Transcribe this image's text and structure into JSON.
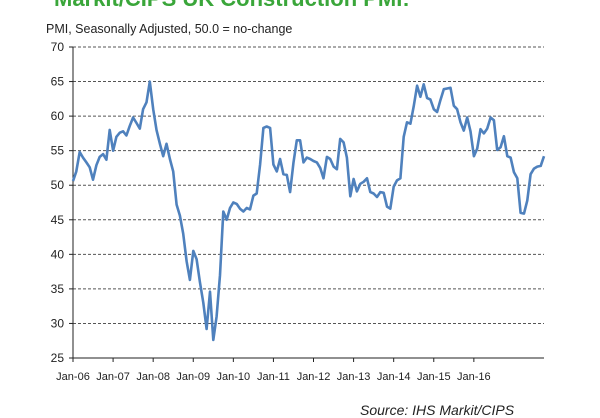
{
  "chart_data": {
    "type": "line",
    "title": "Markit/CIPS UK Construction PMI:",
    "subtitle": "PMI, Seasonally Adjusted, 50.0 = no-change",
    "source": "Source: IHS Markit/CIPS",
    "xlabel": "",
    "ylabel": "",
    "ylim": [
      25,
      70
    ],
    "yticks": [
      25,
      30,
      35,
      40,
      45,
      50,
      55,
      60,
      65,
      70
    ],
    "xticks": [
      "Jan-06",
      "Jan-07",
      "Jan-08",
      "Jan-09",
      "Jan-10",
      "Jan-11",
      "Jan-12",
      "Jan-13",
      "Jan-14",
      "Jan-15",
      "Jan-16"
    ],
    "grid": "horizontal-dashed",
    "line_color": "#4f81bd",
    "series": [
      {
        "values": [
          50.6,
          52.0,
          54.8,
          54.0,
          53.3,
          52.6,
          50.8,
          52.9,
          54.1,
          54.5,
          53.7,
          58.0,
          55.0,
          57.0,
          57.6,
          57.8,
          57.2,
          58.6,
          59.8,
          59.0,
          58.2,
          61.0,
          62.0,
          65.0,
          61.0,
          58.0,
          56.0,
          54.2,
          56.0,
          53.8,
          52.0,
          47.2,
          45.6,
          43.0,
          39.0,
          36.3,
          40.5,
          39.3,
          36.0,
          33.0,
          29.2,
          34.6,
          27.6,
          31.0,
          37.0,
          46.2,
          45.0,
          46.7,
          47.5,
          47.3,
          46.6,
          46.2,
          46.7,
          46.5,
          48.5,
          48.8,
          53.0,
          58.3,
          58.5,
          58.3,
          53.0,
          52.0,
          53.8,
          51.6,
          51.5,
          49.0,
          53.3,
          56.5,
          56.5,
          53.3,
          54.0,
          53.8,
          53.5,
          53.3,
          52.5,
          51.0,
          54.1,
          53.8,
          52.7,
          52.3,
          56.7,
          56.2,
          54.0,
          48.4,
          50.9,
          49.1,
          50.2,
          50.5,
          51.0,
          49.0,
          48.8,
          48.3,
          49.0,
          48.9,
          46.9,
          46.6,
          49.8,
          50.7,
          51.0,
          57.0,
          59.1,
          58.9,
          61.4,
          64.4,
          62.8,
          64.6,
          62.6,
          62.4,
          61.0,
          60.6,
          62.3,
          63.9,
          64.0,
          64.1,
          61.5,
          61.0,
          59.1,
          57.9,
          59.8,
          57.8,
          54.2,
          55.3,
          58.1,
          57.5,
          58.2,
          59.8,
          59.4,
          55.1,
          55.5,
          57.1,
          54.2,
          54.0,
          51.9,
          51.0,
          46.0,
          45.9,
          47.8,
          51.6,
          52.4,
          52.7,
          52.8,
          54.2
        ]
      }
    ]
  }
}
